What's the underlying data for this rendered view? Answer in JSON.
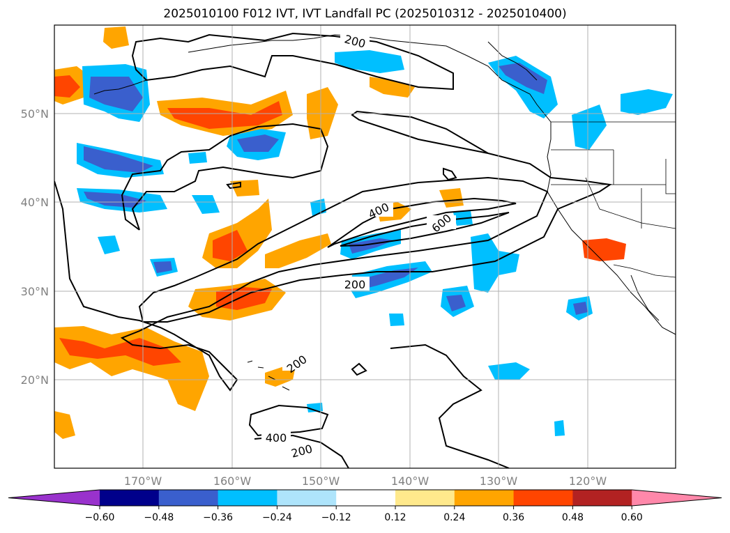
{
  "title": "2025010100 F012 IVT, IVT Landfall PC (2025010312 - 2025010400)",
  "latitude_labels": [
    "50°N",
    "40°N",
    "30°N",
    "20°N"
  ],
  "longitude_labels": [
    "170°W",
    "160°W",
    "150°W",
    "140°W",
    "130°W",
    "120°W"
  ],
  "contour_labels": [
    "200",
    "400",
    "600",
    "200",
    "200",
    "400",
    "200"
  ],
  "colorbar": {
    "ticks": [
      "−0.60",
      "−0.48",
      "−0.36",
      "−0.24",
      "−0.12",
      "0.12",
      "0.24",
      "0.36",
      "0.48",
      "0.60"
    ],
    "colors": [
      "#9932cc",
      "#00008b",
      "#3a5fcd",
      "#00bfff",
      "#aee4fb",
      "#ffffff",
      "#ffe98c",
      "#ffa500",
      "#ff4500",
      "#b22222",
      "#ff88aa"
    ]
  }
}
